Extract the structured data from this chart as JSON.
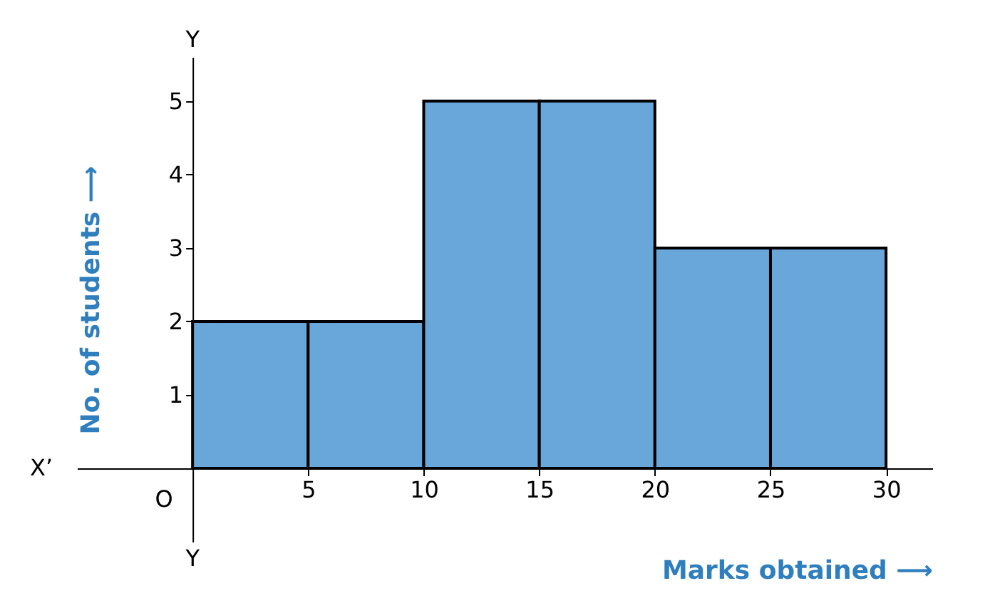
{
  "chart_data": {
    "type": "histogram",
    "bins": [
      0,
      5,
      10,
      15,
      20,
      25,
      30
    ],
    "values": [
      2,
      2,
      5,
      5,
      3,
      3
    ],
    "color": "#69a7db",
    "xlabel": "Marks obtained ⟶",
    "ylabel": "No. of students ⟶",
    "xlim": [
      -5,
      32
    ],
    "ylim": [
      -1,
      5.6
    ],
    "xticks": [
      5,
      10,
      15,
      20,
      25,
      30
    ],
    "yticks": [
      1,
      2,
      3,
      4,
      5
    ],
    "annotations": [
      "Y",
      "X’",
      "O",
      "Y"
    ],
    "grid": false
  }
}
